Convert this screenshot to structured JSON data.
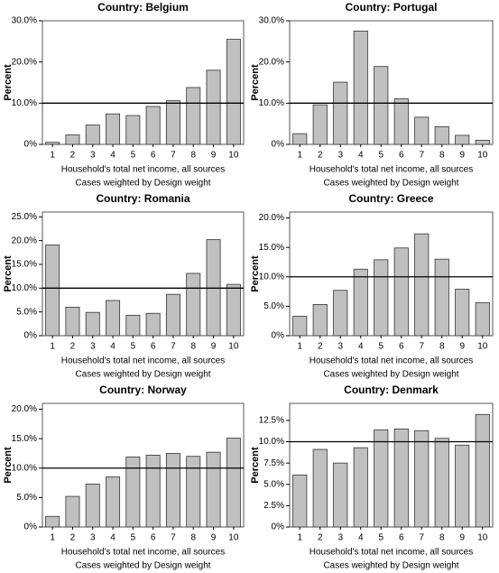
{
  "chart_data": [
    {
      "type": "bar",
      "title": "Country: Belgium",
      "y_label": "Percent",
      "x_label": "Household's total net income, all sources",
      "note": "Cases weighted by Design weight",
      "categories": [
        "1",
        "2",
        "3",
        "4",
        "5",
        "6",
        "7",
        "8",
        "9",
        "10"
      ],
      "values": [
        0.5,
        2.3,
        4.7,
        7.4,
        7.0,
        9.2,
        10.6,
        13.8,
        18.0,
        25.5
      ],
      "color": "#c0c0c0",
      "ylim": [
        0,
        30
      ],
      "yticks": [
        {
          "value": 0,
          "label": "0%"
        },
        {
          "value": 10,
          "label": "10.0%"
        },
        {
          "value": 20,
          "label": "20.0%"
        },
        {
          "value": 30,
          "label": "30.0%"
        }
      ],
      "reference_line": 10
    },
    {
      "type": "bar",
      "title": "Country: Portugal",
      "y_label": "Percent",
      "x_label": "Household's total net income, all sources",
      "note": "Cases weighted by Design weight",
      "categories": [
        "1",
        "2",
        "3",
        "4",
        "5",
        "6",
        "7",
        "8",
        "9",
        "10"
      ],
      "values": [
        2.6,
        9.6,
        15.1,
        27.5,
        18.9,
        11.1,
        6.6,
        4.3,
        2.2,
        1.0
      ],
      "color": "#c0c0c0",
      "ylim": [
        0,
        30
      ],
      "yticks": [
        {
          "value": 0,
          "label": "0%"
        },
        {
          "value": 10,
          "label": "10.0%"
        },
        {
          "value": 20,
          "label": "20.0%"
        },
        {
          "value": 30,
          "label": "30.0%"
        }
      ],
      "reference_line": 10
    },
    {
      "type": "bar",
      "title": "Country: Romania",
      "y_label": "Percent",
      "x_label": "Household's total net income, all sources",
      "note": "Cases weighted by Design weight",
      "categories": [
        "1",
        "2",
        "3",
        "4",
        "5",
        "6",
        "7",
        "8",
        "9",
        "10"
      ],
      "values": [
        19.1,
        6.0,
        4.9,
        7.4,
        4.3,
        4.7,
        8.7,
        13.1,
        20.2,
        10.8
      ],
      "color": "#c0c0c0",
      "ylim": [
        0,
        26
      ],
      "yticks": [
        {
          "value": 0,
          "label": "0%"
        },
        {
          "value": 5,
          "label": "5.0%"
        },
        {
          "value": 10,
          "label": "10.0%"
        },
        {
          "value": 15,
          "label": "15.0%"
        },
        {
          "value": 20,
          "label": "20.0%"
        },
        {
          "value": 25,
          "label": "25.0%"
        }
      ],
      "reference_line": 10
    },
    {
      "type": "bar",
      "title": "Country: Greece",
      "y_label": "Percent",
      "x_label": "Household's total net income, all sources",
      "note": "Cases weighted by Design weight",
      "categories": [
        "1",
        "2",
        "3",
        "4",
        "5",
        "6",
        "7",
        "8",
        "9",
        "10"
      ],
      "values": [
        3.3,
        5.3,
        7.7,
        11.3,
        12.9,
        14.9,
        17.3,
        13.0,
        7.9,
        5.6
      ],
      "color": "#c0c0c0",
      "ylim": [
        0,
        21
      ],
      "yticks": [
        {
          "value": 0,
          "label": "0%"
        },
        {
          "value": 5,
          "label": "5.0%"
        },
        {
          "value": 10,
          "label": "10.0%"
        },
        {
          "value": 15,
          "label": "15.0%"
        },
        {
          "value": 20,
          "label": "20.0%"
        }
      ],
      "reference_line": 10
    },
    {
      "type": "bar",
      "title": "Country: Norway",
      "y_label": "Percent",
      "x_label": "Household's total net income, all sources",
      "note": "Cases weighted by Design weight",
      "categories": [
        "1",
        "2",
        "3",
        "4",
        "5",
        "6",
        "7",
        "8",
        "9",
        "10"
      ],
      "values": [
        1.8,
        5.2,
        7.3,
        8.5,
        11.9,
        12.2,
        12.5,
        12.0,
        12.7,
        15.1
      ],
      "color": "#c0c0c0",
      "ylim": [
        0,
        21
      ],
      "yticks": [
        {
          "value": 0,
          "label": "0%"
        },
        {
          "value": 5,
          "label": "5.0%"
        },
        {
          "value": 10,
          "label": "10.0%"
        },
        {
          "value": 15,
          "label": "15.0%"
        },
        {
          "value": 20,
          "label": "20.0%"
        }
      ],
      "reference_line": 10
    },
    {
      "type": "bar",
      "title": "Country: Denmark",
      "y_label": "Percent",
      "x_label": "Household's total net income, all sources",
      "note": "Cases weighted by Design weight",
      "categories": [
        "1",
        "2",
        "3",
        "4",
        "5",
        "6",
        "7",
        "8",
        "9",
        "10"
      ],
      "values": [
        6.1,
        9.1,
        7.5,
        9.3,
        11.4,
        11.5,
        11.3,
        10.4,
        9.6,
        13.2
      ],
      "color": "#c0c0c0",
      "ylim": [
        0,
        14.5
      ],
      "yticks": [
        {
          "value": 0,
          "label": "0%"
        },
        {
          "value": 2.5,
          "label": "2.5%"
        },
        {
          "value": 5,
          "label": "5.0%"
        },
        {
          "value": 7.5,
          "label": "7.5%"
        },
        {
          "value": 10,
          "label": "10.0%"
        },
        {
          "value": 12.5,
          "label": "12.5%"
        }
      ],
      "reference_line": 10
    }
  ]
}
